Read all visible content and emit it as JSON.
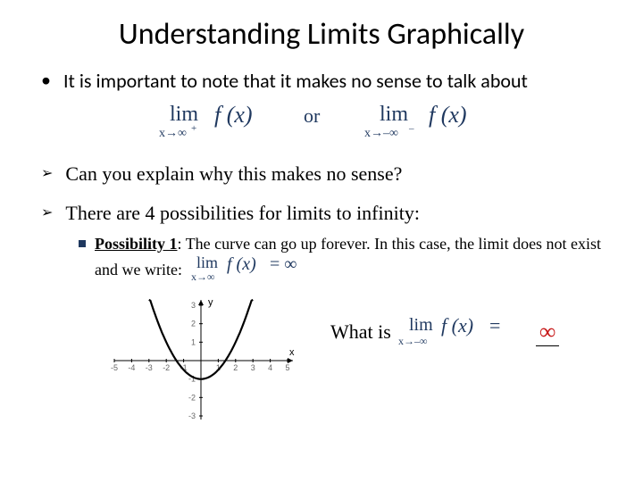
{
  "title": "Understanding Limits Graphically",
  "bullet1": "It is important to note that it makes no sense to talk about",
  "eq1": {
    "lim_text": "lim",
    "sub1": "x→∞⁺",
    "fx": "f (x)",
    "or": "or",
    "sub2": "x→–∞⁻",
    "color": "#1f385f"
  },
  "arrow1": "Can you explain why this makes no sense?",
  "arrow2": "There are 4 possibilities for limits to infinity:",
  "poss": {
    "label": "Possibility 1",
    "text": ": The curve can go up forever.  In this case, the limit does not exist and we write:"
  },
  "eq2": {
    "sub": "x→∞",
    "rhs": "= ∞",
    "color": "#1f385f"
  },
  "whatis": "What is",
  "eq3": {
    "sub": "x→–∞",
    "color": "#1f385f"
  },
  "answer": "∞",
  "graph": {
    "xrange": [
      -5,
      5
    ],
    "yrange": [
      -3,
      3
    ],
    "xticks": [
      -5,
      -4,
      -3,
      -2,
      -1,
      1,
      2,
      3,
      4,
      5
    ],
    "yticks": [
      -3,
      -2,
      -1,
      1,
      2,
      3
    ],
    "axis_color": "#000000",
    "tick_color": "#666666",
    "tick_font": 9,
    "curve_color": "#000000",
    "curve_width": 2.2,
    "label_x": "x",
    "label_y": "y",
    "curve_fn": "0.5*x*x - 1"
  }
}
